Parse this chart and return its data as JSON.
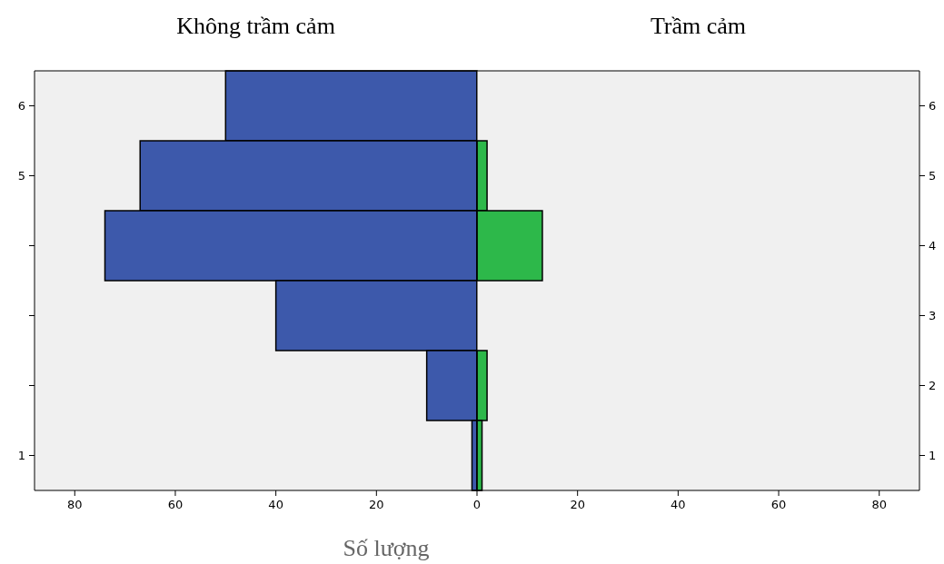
{
  "chart_data": [
    {
      "type": "bar",
      "orientation": "horizontal",
      "title": "Không trầm cảm",
      "xlabel": "Số lượng",
      "categories": [
        "6",
        "5",
        null,
        null,
        null,
        "1"
      ],
      "xlim": [
        88,
        0
      ],
      "xticks": [
        80,
        60,
        40,
        20,
        0
      ],
      "series": [
        {
          "color": "#3d59ab",
          "values": [
            50,
            67,
            74,
            40,
            10,
            1
          ]
        }
      ]
    },
    {
      "type": "bar",
      "orientation": "horizontal",
      "title": "Trầm cảm",
      "categories": [
        "6",
        "5",
        "4",
        "3",
        "2",
        "1"
      ],
      "xlim": [
        0,
        88
      ],
      "xticks": [
        20,
        40,
        60,
        80
      ],
      "series": [
        {
          "color": "#2db84a",
          "values": [
            0,
            2,
            13,
            0,
            2,
            1
          ]
        }
      ]
    }
  ]
}
